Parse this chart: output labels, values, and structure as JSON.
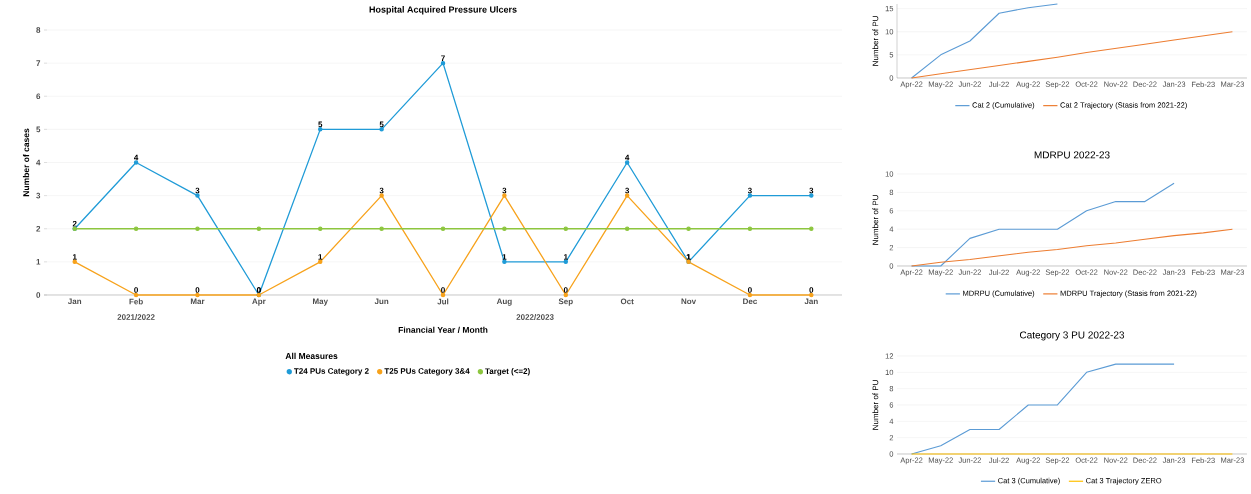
{
  "chart_data": [
    {
      "type": "line",
      "title": "Hospital Acquired Pressure Ulcers",
      "xlabel": "Financial Year / Month",
      "ylabel": "Number of cases",
      "legend_title": "All Measures",
      "categories": [
        "Jan",
        "Feb",
        "Mar",
        "Apr",
        "May",
        "Jun",
        "Jul",
        "Aug",
        "Sep",
        "Oct",
        "Nov",
        "Dec",
        "Jan"
      ],
      "series": [
        {
          "name": "T24 PUs Category 2",
          "color": "#1f9bd7",
          "values": [
            2,
            4,
            3,
            0,
            5,
            5,
            7,
            1,
            1,
            4,
            1,
            3,
            3
          ],
          "value_labels": [
            "2",
            "4",
            "3",
            "0",
            "5",
            "5",
            "7",
            "1",
            "1",
            "4",
            "1",
            "3",
            "3"
          ]
        },
        {
          "name": "T25 PUs Category 3&4",
          "color": "#f7a21b",
          "values": [
            1,
            0,
            0,
            0,
            1,
            3,
            0,
            3,
            0,
            3,
            1,
            0,
            0
          ],
          "value_labels": [
            "1",
            "0",
            "0",
            "0",
            "1",
            "3",
            "0",
            "3",
            "0",
            "3",
            "1",
            "0",
            "0"
          ]
        },
        {
          "name": "Target (<=2)",
          "color": "#8dc63f",
          "values": [
            2,
            2,
            2,
            2,
            2,
            2,
            2,
            2,
            2,
            2,
            2,
            2,
            2
          ]
        }
      ],
      "annotations": [
        "2021/2022",
        "2022/2023"
      ],
      "ylim": [
        0,
        8
      ],
      "yticks": [
        0,
        1,
        2,
        3,
        4,
        5,
        6,
        7,
        8
      ],
      "grid": "y",
      "legend": "bottom",
      "marker": "circle",
      "line_style": "solid"
    },
    {
      "type": "line",
      "ylabel": "Number of PU",
      "categories": [
        "Apr-22",
        "May-22",
        "Jun-22",
        "Jul-22",
        "Aug-22",
        "Sep-22",
        "Oct-22",
        "Nov-22",
        "Dec-22",
        "Jan-23",
        "Feb-23",
        "Mar-23"
      ],
      "series": [
        {
          "name": "Cat 2 (Cumulative)",
          "color": "#5b9bd5",
          "values": [
            0,
            5,
            8,
            14,
            15.2,
            16,
            null,
            null,
            null,
            null,
            null,
            null
          ]
        },
        {
          "name": "Cat 2 Trajectory (Stasis from 2021-22)",
          "color": "#ed7d31",
          "values": [
            0,
            0.9,
            1.8,
            2.7,
            3.6,
            4.5,
            5.5,
            6.4,
            7.3,
            8.2,
            9.1,
            10
          ]
        }
      ],
      "ylim": [
        0,
        16
      ],
      "yticks": [
        0,
        5,
        10,
        15
      ],
      "grid": "y",
      "legend": "bottom",
      "marker": "none",
      "line_style": "solid"
    },
    {
      "type": "line",
      "title": "MDRPU 2022-23",
      "ylabel": "Number of PU",
      "categories": [
        "Apr-22",
        "May-22",
        "Jun-22",
        "Jul-22",
        "Aug-22",
        "Sep-22",
        "Oct-22",
        "Nov-22",
        "Dec-22",
        "Jan-23",
        "Feb-23",
        "Mar-23"
      ],
      "series": [
        {
          "name": "MDRPU (Cumulative)",
          "color": "#5b9bd5",
          "values": [
            0,
            0,
            3,
            4,
            4,
            4,
            6,
            7,
            7,
            9,
            null,
            null
          ]
        },
        {
          "name": "MDRPU Trajectory (Stasis from 2021-22)",
          "color": "#ed7d31",
          "values": [
            0,
            0.4,
            0.7,
            1.1,
            1.5,
            1.8,
            2.2,
            2.5,
            2.9,
            3.3,
            3.6,
            4
          ]
        }
      ],
      "ylim": [
        0,
        10
      ],
      "yticks": [
        0,
        2,
        4,
        6,
        8,
        10
      ],
      "grid": "y",
      "legend": "bottom",
      "marker": "none",
      "line_style": "solid"
    },
    {
      "type": "line",
      "title": "Category 3 PU 2022-23",
      "ylabel": "Number of PU",
      "categories": [
        "Apr-22",
        "May-22",
        "Jun-22",
        "Jul-22",
        "Aug-22",
        "Sep-22",
        "Oct-22",
        "Nov-22",
        "Dec-22",
        "Jan-23",
        "Feb-23",
        "Mar-23"
      ],
      "series": [
        {
          "name": "Cat 3 (Cumulative)",
          "color": "#5b9bd5",
          "values": [
            0,
            1,
            3,
            3,
            6,
            6,
            10,
            11,
            11,
            11,
            null,
            null
          ]
        },
        {
          "name": "Cat 3 Trajectory ZERO",
          "color": "#ffc000",
          "values": [
            0,
            0,
            0,
            0,
            0,
            0,
            0,
            0,
            0,
            0,
            0,
            0
          ]
        }
      ],
      "ylim": [
        0,
        12
      ],
      "yticks": [
        0,
        2,
        4,
        6,
        8,
        10,
        12
      ],
      "grid": "y",
      "legend": "bottom",
      "marker": "none",
      "line_style": "solid"
    }
  ]
}
